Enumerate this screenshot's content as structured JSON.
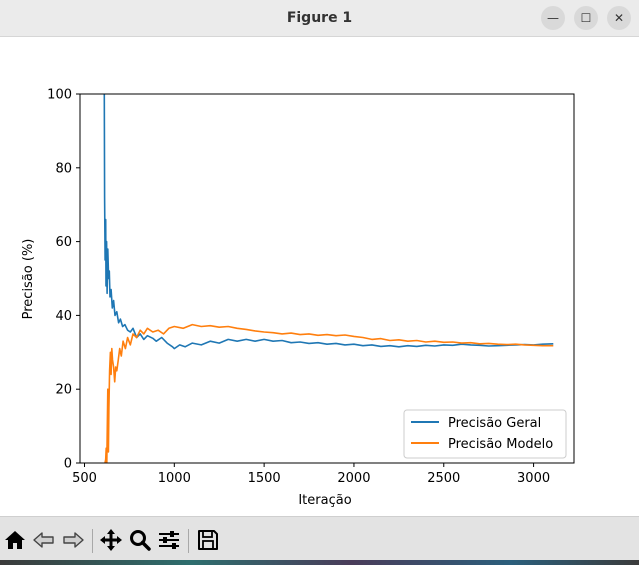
{
  "window": {
    "title": "Figure 1",
    "minimize_glyph": "—",
    "maximize_glyph": "☐",
    "close_glyph": "✕"
  },
  "toolbar": {
    "icons": [
      "home-icon",
      "back-arrow-icon",
      "forward-arrow-icon",
      "pan-move-icon",
      "zoom-magnifier-icon",
      "configure-subplots-icon",
      "save-floppy-icon"
    ]
  },
  "chart_data": {
    "type": "line",
    "title": "",
    "xlabel": "Iteração",
    "ylabel": "Precisão (%)",
    "xlim": [
      475,
      3225
    ],
    "ylim": [
      0,
      100
    ],
    "xticks": [
      500,
      1000,
      1500,
      2000,
      2500,
      3000
    ],
    "yticks": [
      0,
      20,
      40,
      60,
      80,
      100
    ],
    "grid": false,
    "legend_position": "lower-right",
    "series": [
      {
        "name": "Precisão Geral",
        "color": "#1f77b4",
        "points": [
          [
            610,
            100
          ],
          [
            612,
            72
          ],
          [
            615,
            55
          ],
          [
            618,
            66
          ],
          [
            620,
            48
          ],
          [
            623,
            60
          ],
          [
            626,
            46
          ],
          [
            630,
            58
          ],
          [
            634,
            50
          ],
          [
            638,
            52
          ],
          [
            642,
            45
          ],
          [
            648,
            47
          ],
          [
            655,
            42
          ],
          [
            662,
            44
          ],
          [
            670,
            40
          ],
          [
            680,
            41
          ],
          [
            690,
            38
          ],
          [
            700,
            39
          ],
          [
            712,
            37
          ],
          [
            725,
            37.5
          ],
          [
            740,
            36
          ],
          [
            755,
            35.5
          ],
          [
            770,
            36.5
          ],
          [
            790,
            34
          ],
          [
            810,
            35
          ],
          [
            830,
            33.5
          ],
          [
            850,
            34.5
          ],
          [
            880,
            33.8
          ],
          [
            900,
            33
          ],
          [
            930,
            34
          ],
          [
            960,
            32.5
          ],
          [
            990,
            31.5
          ],
          [
            1000,
            31
          ],
          [
            1030,
            32
          ],
          [
            1060,
            31.5
          ],
          [
            1100,
            32.5
          ],
          [
            1150,
            32
          ],
          [
            1200,
            33
          ],
          [
            1250,
            32.5
          ],
          [
            1300,
            33.5
          ],
          [
            1350,
            33
          ],
          [
            1400,
            33.5
          ],
          [
            1450,
            33
          ],
          [
            1500,
            33.5
          ],
          [
            1550,
            33
          ],
          [
            1600,
            33.2
          ],
          [
            1650,
            32.6
          ],
          [
            1700,
            32.8
          ],
          [
            1750,
            32.4
          ],
          [
            1800,
            32.6
          ],
          [
            1850,
            32.2
          ],
          [
            1900,
            32.4
          ],
          [
            1950,
            32
          ],
          [
            2000,
            32.2
          ],
          [
            2050,
            31.8
          ],
          [
            2100,
            32
          ],
          [
            2150,
            31.6
          ],
          [
            2200,
            31.8
          ],
          [
            2250,
            31.5
          ],
          [
            2300,
            31.8
          ],
          [
            2350,
            31.6
          ],
          [
            2400,
            31.9
          ],
          [
            2450,
            31.7
          ],
          [
            2500,
            32
          ],
          [
            2550,
            31.9
          ],
          [
            2600,
            32.2
          ],
          [
            2650,
            32
          ],
          [
            2700,
            31.9
          ],
          [
            2750,
            31.7
          ],
          [
            2800,
            31.8
          ],
          [
            2850,
            31.9
          ],
          [
            2900,
            32
          ],
          [
            2950,
            32.1
          ],
          [
            3000,
            32
          ],
          [
            3050,
            32.2
          ],
          [
            3110,
            32.3
          ]
        ]
      },
      {
        "name": "Precisão Modelo",
        "color": "#ff7f0e",
        "points": [
          [
            614,
            0
          ],
          [
            618,
            1
          ],
          [
            621,
            4
          ],
          [
            624,
            0
          ],
          [
            627,
            10
          ],
          [
            630,
            20
          ],
          [
            633,
            3
          ],
          [
            636,
            15
          ],
          [
            640,
            25
          ],
          [
            644,
            30
          ],
          [
            648,
            24
          ],
          [
            652,
            31
          ],
          [
            656,
            28
          ],
          [
            662,
            26
          ],
          [
            668,
            22
          ],
          [
            674,
            26
          ],
          [
            680,
            25
          ],
          [
            688,
            28
          ],
          [
            696,
            31
          ],
          [
            705,
            29
          ],
          [
            715,
            33
          ],
          [
            728,
            31
          ],
          [
            740,
            34
          ],
          [
            755,
            32
          ],
          [
            770,
            35
          ],
          [
            790,
            34
          ],
          [
            810,
            36
          ],
          [
            830,
            35
          ],
          [
            850,
            36.5
          ],
          [
            880,
            35.5
          ],
          [
            910,
            36
          ],
          [
            940,
            35
          ],
          [
            970,
            36.5
          ],
          [
            1000,
            37
          ],
          [
            1050,
            36.5
          ],
          [
            1100,
            37.5
          ],
          [
            1150,
            37
          ],
          [
            1200,
            37.2
          ],
          [
            1250,
            36.8
          ],
          [
            1300,
            37
          ],
          [
            1350,
            36.5
          ],
          [
            1400,
            36.2
          ],
          [
            1450,
            35.8
          ],
          [
            1500,
            35.5
          ],
          [
            1550,
            35.3
          ],
          [
            1600,
            35
          ],
          [
            1650,
            35.2
          ],
          [
            1700,
            34.8
          ],
          [
            1750,
            35
          ],
          [
            1800,
            34.6
          ],
          [
            1850,
            34.8
          ],
          [
            1900,
            34.5
          ],
          [
            1950,
            34.7
          ],
          [
            2000,
            34.3
          ],
          [
            2050,
            34
          ],
          [
            2100,
            33.5
          ],
          [
            2150,
            33.7
          ],
          [
            2200,
            33.2
          ],
          [
            2250,
            33.4
          ],
          [
            2300,
            33
          ],
          [
            2350,
            33.2
          ],
          [
            2400,
            32.8
          ],
          [
            2450,
            33
          ],
          [
            2500,
            32.7
          ],
          [
            2550,
            32.8
          ],
          [
            2600,
            32.5
          ],
          [
            2650,
            32.6
          ],
          [
            2700,
            32.3
          ],
          [
            2750,
            32.4
          ],
          [
            2800,
            32.2
          ],
          [
            2850,
            32.1
          ],
          [
            2900,
            32.2
          ],
          [
            2950,
            32
          ],
          [
            3000,
            31.9
          ],
          [
            3050,
            31.8
          ],
          [
            3110,
            31.8
          ]
        ]
      }
    ]
  }
}
